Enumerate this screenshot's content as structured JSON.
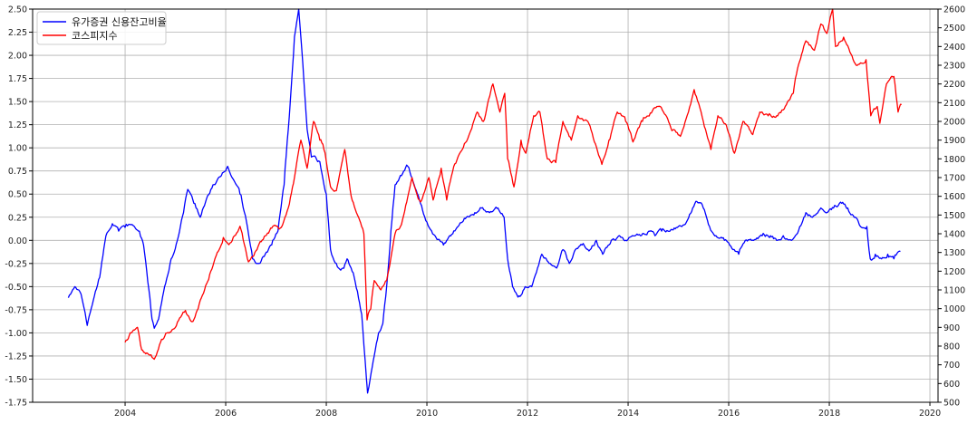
{
  "chart_data": {
    "type": "line",
    "title": "",
    "xlabel": "",
    "ylabel": "",
    "grid": true,
    "legend_position": "top-left",
    "x_axis": {
      "type": "date",
      "range": [
        "2002-03-01",
        "2020-03-01"
      ],
      "ticks": [
        "2004",
        "2006",
        "2008",
        "2010",
        "2012",
        "2014",
        "2016",
        "2018",
        "2020"
      ]
    },
    "y_left": {
      "range": [
        -1.75,
        2.5
      ],
      "ticks": [
        "-1.75",
        "-1.50",
        "-1.25",
        "-1.00",
        "-0.75",
        "-0.50",
        "-0.25",
        "0.00",
        "0.25",
        "0.50",
        "0.75",
        "1.00",
        "1.25",
        "1.50",
        "1.75",
        "2.00",
        "2.25",
        "2.50"
      ]
    },
    "y_right": {
      "range": [
        500,
        2600
      ],
      "ticks": [
        "500",
        "600",
        "700",
        "800",
        "900",
        "1000",
        "1100",
        "1200",
        "1300",
        "1400",
        "1500",
        "1600",
        "1700",
        "1800",
        "1900",
        "2000",
        "2100",
        "2200",
        "2300",
        "2400",
        "2500",
        "2600"
      ]
    },
    "series": [
      {
        "name": "유가증권 신용잔고비율",
        "color": "#0000ff",
        "axis": "left",
        "points": [
          [
            "2002-11-15",
            -0.62
          ],
          [
            "2003-01-01",
            -0.5
          ],
          [
            "2003-02-15",
            -0.58
          ],
          [
            "2003-04-01",
            -0.92
          ],
          [
            "2003-05-15",
            -0.65
          ],
          [
            "2003-07-01",
            -0.4
          ],
          [
            "2003-08-15",
            0.05
          ],
          [
            "2003-10-01",
            0.18
          ],
          [
            "2003-11-15",
            0.1
          ],
          [
            "2004-01-01",
            0.14
          ],
          [
            "2004-03-01",
            0.16
          ],
          [
            "2004-04-15",
            0.1
          ],
          [
            "2004-05-15",
            -0.05
          ],
          [
            "2004-06-15",
            -0.45
          ],
          [
            "2004-07-15",
            -0.85
          ],
          [
            "2004-08-01",
            -0.95
          ],
          [
            "2004-09-01",
            -0.85
          ],
          [
            "2004-10-15",
            -0.5
          ],
          [
            "2004-12-01",
            -0.2
          ],
          [
            "2005-01-15",
            0.0
          ],
          [
            "2005-03-01",
            0.3
          ],
          [
            "2005-04-01",
            0.55
          ],
          [
            "2005-05-15",
            0.4
          ],
          [
            "2005-07-01",
            0.25
          ],
          [
            "2005-08-15",
            0.45
          ],
          [
            "2005-10-01",
            0.6
          ],
          [
            "2005-12-01",
            0.7
          ],
          [
            "2006-01-15",
            0.8
          ],
          [
            "2006-03-01",
            0.65
          ],
          [
            "2006-04-15",
            0.5
          ],
          [
            "2006-06-01",
            0.2
          ],
          [
            "2006-07-15",
            -0.2
          ],
          [
            "2006-09-01",
            -0.25
          ],
          [
            "2006-10-15",
            -0.15
          ],
          [
            "2006-12-01",
            -0.05
          ],
          [
            "2007-01-15",
            0.1
          ],
          [
            "2007-03-01",
            0.6
          ],
          [
            "2007-04-15",
            1.5
          ],
          [
            "2007-05-15",
            2.2
          ],
          [
            "2007-06-15",
            2.5
          ],
          [
            "2007-07-15",
            1.9
          ],
          [
            "2007-08-15",
            1.2
          ],
          [
            "2007-09-15",
            0.9
          ],
          [
            "2007-11-15",
            0.85
          ],
          [
            "2008-01-01",
            0.5
          ],
          [
            "2008-02-01",
            -0.1
          ],
          [
            "2008-03-15",
            -0.25
          ],
          [
            "2008-05-01",
            -0.3
          ],
          [
            "2008-06-01",
            -0.2
          ],
          [
            "2008-07-15",
            -0.35
          ],
          [
            "2008-08-15",
            -0.55
          ],
          [
            "2008-09-15",
            -0.8
          ],
          [
            "2008-10-10",
            -1.3
          ],
          [
            "2008-10-28",
            -1.65
          ],
          [
            "2008-11-15",
            -1.5
          ],
          [
            "2008-12-15",
            -1.25
          ],
          [
            "2009-01-15",
            -1.0
          ],
          [
            "2009-02-15",
            -0.9
          ],
          [
            "2009-03-15",
            -0.5
          ],
          [
            "2009-04-15",
            0.1
          ],
          [
            "2009-05-15",
            0.6
          ],
          [
            "2009-07-01",
            0.7
          ],
          [
            "2009-08-15",
            0.8
          ],
          [
            "2009-10-01",
            0.6
          ],
          [
            "2009-11-15",
            0.4
          ],
          [
            "2010-01-01",
            0.2
          ],
          [
            "2010-03-01",
            0.05
          ],
          [
            "2010-05-01",
            -0.05
          ],
          [
            "2010-06-15",
            0.05
          ],
          [
            "2010-08-15",
            0.15
          ],
          [
            "2010-10-15",
            0.25
          ],
          [
            "2010-12-15",
            0.3
          ],
          [
            "2011-02-01",
            0.35
          ],
          [
            "2011-04-01",
            0.3
          ],
          [
            "2011-06-01",
            0.35
          ],
          [
            "2011-07-15",
            0.25
          ],
          [
            "2011-08-10",
            -0.2
          ],
          [
            "2011-09-15",
            -0.5
          ],
          [
            "2011-11-01",
            -0.6
          ],
          [
            "2011-12-15",
            -0.5
          ],
          [
            "2012-02-01",
            -0.5
          ],
          [
            "2012-03-15",
            -0.3
          ],
          [
            "2012-04-15",
            -0.15
          ],
          [
            "2012-06-15",
            -0.25
          ],
          [
            "2012-08-01",
            -0.3
          ],
          [
            "2012-09-15",
            -0.1
          ],
          [
            "2012-11-01",
            -0.25
          ],
          [
            "2012-12-15",
            -0.1
          ],
          [
            "2013-02-01",
            -0.05
          ],
          [
            "2013-04-01",
            -0.1
          ],
          [
            "2013-05-15",
            0.0
          ],
          [
            "2013-07-01",
            -0.15
          ],
          [
            "2013-09-01",
            0.0
          ],
          [
            "2013-11-01",
            0.05
          ],
          [
            "2013-12-15",
            0.0
          ],
          [
            "2014-02-01",
            0.05
          ],
          [
            "2014-04-01",
            0.05
          ],
          [
            "2014-06-01",
            0.1
          ],
          [
            "2014-07-15",
            0.05
          ],
          [
            "2014-09-01",
            0.1
          ],
          [
            "2014-11-01",
            0.1
          ],
          [
            "2015-01-01",
            0.15
          ],
          [
            "2015-03-01",
            0.2
          ],
          [
            "2015-04-15",
            0.35
          ],
          [
            "2015-05-15",
            0.42
          ],
          [
            "2015-07-01",
            0.35
          ],
          [
            "2015-08-15",
            0.15
          ],
          [
            "2015-10-01",
            0.05
          ],
          [
            "2015-12-01",
            0.0
          ],
          [
            "2016-02-01",
            -0.1
          ],
          [
            "2016-03-15",
            -0.15
          ],
          [
            "2016-05-01",
            0.0
          ],
          [
            "2016-07-01",
            0.0
          ],
          [
            "2016-09-01",
            0.05
          ],
          [
            "2016-11-01",
            0.05
          ],
          [
            "2016-12-15",
            0.0
          ],
          [
            "2017-02-01",
            0.05
          ],
          [
            "2017-04-01",
            0.0
          ],
          [
            "2017-06-01",
            0.15
          ],
          [
            "2017-07-15",
            0.3
          ],
          [
            "2017-09-01",
            0.25
          ],
          [
            "2017-11-01",
            0.35
          ],
          [
            "2017-12-15",
            0.3
          ],
          [
            "2018-02-01",
            0.35
          ],
          [
            "2018-04-01",
            0.4
          ],
          [
            "2018-05-15",
            0.35
          ],
          [
            "2018-07-01",
            0.25
          ],
          [
            "2018-08-15",
            0.15
          ],
          [
            "2018-10-01",
            0.15
          ],
          [
            "2018-10-25",
            -0.2
          ],
          [
            "2018-12-01",
            -0.15
          ],
          [
            "2019-01-15",
            -0.2
          ],
          [
            "2019-03-01",
            -0.15
          ],
          [
            "2019-04-15",
            -0.2
          ],
          [
            "2019-06-01",
            -0.12
          ]
        ]
      },
      {
        "name": "코스피지수",
        "color": "#ff0000",
        "axis": "right",
        "points": [
          [
            "2004-01-01",
            820
          ],
          [
            "2004-02-15",
            870
          ],
          [
            "2004-04-01",
            900
          ],
          [
            "2004-05-01",
            780
          ],
          [
            "2004-06-15",
            760
          ],
          [
            "2004-08-01",
            730
          ],
          [
            "2004-09-15",
            820
          ],
          [
            "2004-11-01",
            870
          ],
          [
            "2004-12-15",
            890
          ],
          [
            "2005-02-01",
            950
          ],
          [
            "2005-03-15",
            990
          ],
          [
            "2005-05-01",
            930
          ],
          [
            "2005-06-15",
            1000
          ],
          [
            "2005-08-01",
            1100
          ],
          [
            "2005-09-15",
            1200
          ],
          [
            "2005-11-01",
            1300
          ],
          [
            "2005-12-15",
            1380
          ],
          [
            "2006-02-01",
            1350
          ],
          [
            "2006-04-15",
            1440
          ],
          [
            "2006-06-15",
            1250
          ],
          [
            "2006-08-01",
            1300
          ],
          [
            "2006-10-01",
            1370
          ],
          [
            "2006-12-01",
            1430
          ],
          [
            "2007-02-01",
            1430
          ],
          [
            "2007-04-01",
            1540
          ],
          [
            "2007-05-15",
            1700
          ],
          [
            "2007-07-01",
            1900
          ],
          [
            "2007-08-15",
            1750
          ],
          [
            "2007-10-01",
            2000
          ],
          [
            "2007-11-15",
            1900
          ],
          [
            "2007-12-15",
            1850
          ],
          [
            "2008-02-01",
            1650
          ],
          [
            "2008-03-15",
            1630
          ],
          [
            "2008-05-15",
            1850
          ],
          [
            "2008-07-01",
            1600
          ],
          [
            "2008-08-15",
            1500
          ],
          [
            "2008-10-01",
            1400
          ],
          [
            "2008-10-24",
            940
          ],
          [
            "2008-11-20",
            1000
          ],
          [
            "2008-12-15",
            1150
          ],
          [
            "2009-02-01",
            1100
          ],
          [
            "2009-03-15",
            1150
          ],
          [
            "2009-05-15",
            1400
          ],
          [
            "2009-07-01",
            1450
          ],
          [
            "2009-09-15",
            1700
          ],
          [
            "2009-11-15",
            1570
          ],
          [
            "2010-01-15",
            1700
          ],
          [
            "2010-02-15",
            1580
          ],
          [
            "2010-04-15",
            1750
          ],
          [
            "2010-05-25",
            1580
          ],
          [
            "2010-07-15",
            1760
          ],
          [
            "2010-09-15",
            1850
          ],
          [
            "2010-11-15",
            1950
          ],
          [
            "2011-01-01",
            2050
          ],
          [
            "2011-02-15",
            2000
          ],
          [
            "2011-04-25",
            2200
          ],
          [
            "2011-06-15",
            2050
          ],
          [
            "2011-07-20",
            2150
          ],
          [
            "2011-08-10",
            1800
          ],
          [
            "2011-09-25",
            1650
          ],
          [
            "2011-11-15",
            1900
          ],
          [
            "2011-12-20",
            1830
          ],
          [
            "2012-02-15",
            2030
          ],
          [
            "2012-04-01",
            2050
          ],
          [
            "2012-05-25",
            1800
          ],
          [
            "2012-07-25",
            1780
          ],
          [
            "2012-09-15",
            2000
          ],
          [
            "2012-11-15",
            1900
          ],
          [
            "2013-01-01",
            2030
          ],
          [
            "2013-03-15",
            2000
          ],
          [
            "2013-06-25",
            1770
          ],
          [
            "2013-08-15",
            1900
          ],
          [
            "2013-10-15",
            2050
          ],
          [
            "2013-12-15",
            2000
          ],
          [
            "2014-02-05",
            1890
          ],
          [
            "2014-04-15",
            2000
          ],
          [
            "2014-07-30",
            2080
          ],
          [
            "2014-09-15",
            2050
          ],
          [
            "2014-11-15",
            1950
          ],
          [
            "2015-01-15",
            1920
          ],
          [
            "2015-03-15",
            2050
          ],
          [
            "2015-04-25",
            2170
          ],
          [
            "2015-06-15",
            2050
          ],
          [
            "2015-08-25",
            1850
          ],
          [
            "2015-10-15",
            2030
          ],
          [
            "2015-12-15",
            1980
          ],
          [
            "2016-02-12",
            1830
          ],
          [
            "2016-04-15",
            2000
          ],
          [
            "2016-06-25",
            1930
          ],
          [
            "2016-08-15",
            2050
          ],
          [
            "2016-10-15",
            2030
          ],
          [
            "2016-12-15",
            2030
          ],
          [
            "2017-02-15",
            2080
          ],
          [
            "2017-04-15",
            2150
          ],
          [
            "2017-05-15",
            2280
          ],
          [
            "2017-07-15",
            2430
          ],
          [
            "2017-09-15",
            2380
          ],
          [
            "2017-11-01",
            2520
          ],
          [
            "2017-12-15",
            2470
          ],
          [
            "2018-01-25",
            2600
          ],
          [
            "2018-02-15",
            2400
          ],
          [
            "2018-04-15",
            2450
          ],
          [
            "2018-06-15",
            2350
          ],
          [
            "2018-07-15",
            2300
          ],
          [
            "2018-09-25",
            2330
          ],
          [
            "2018-10-29",
            2030
          ],
          [
            "2018-12-15",
            2080
          ],
          [
            "2019-01-03",
            1990
          ],
          [
            "2019-02-20",
            2200
          ],
          [
            "2019-04-15",
            2240
          ],
          [
            "2019-05-15",
            2050
          ],
          [
            "2019-06-10",
            2090
          ]
        ]
      }
    ]
  }
}
